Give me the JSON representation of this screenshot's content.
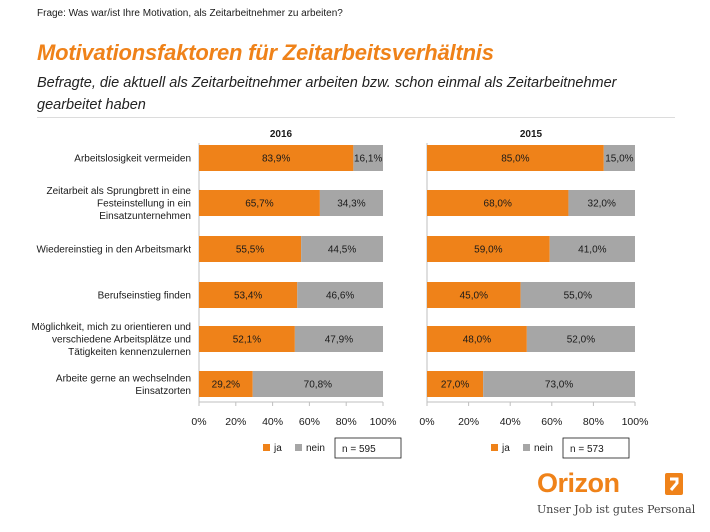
{
  "header": {
    "question": "Frage: Was war/ist Ihre Motivation, als Zeitarbeitnehmer zu arbeiten?",
    "title": "Motivationsfaktoren für Zeitarbeitsverhältnis",
    "subtitle": "Befragte, die aktuell als Zeitarbeitnehmer arbeiten bzw. schon einmal als Zeitarbeitnehmer gearbeitet haben"
  },
  "colors": {
    "ja": "#ef8219",
    "nein": "#a6a6a6",
    "accent": "#ef8219"
  },
  "chart_data": [
    {
      "type": "bar",
      "orientation": "horizontal",
      "stacked": true,
      "title": "2016",
      "categories": [
        [
          "Arbeitslosigkeit vermeiden"
        ],
        [
          "Zeitarbeit als Sprungbrett in eine",
          "Festeinstellung in ein",
          "Einsatzunternehmen"
        ],
        [
          "Wiedereinstieg in den Arbeitsmarkt"
        ],
        [
          "Berufseinstieg finden"
        ],
        [
          "Möglichkeit, mich zu orientieren und",
          "verschiedene Arbeitsplätze und",
          "Tätigkeiten kennenzulernen"
        ],
        [
          "Arbeite gerne an wechselnden",
          "Einsatzorten"
        ]
      ],
      "series": [
        {
          "name": "ja",
          "values": [
            83.9,
            65.7,
            55.5,
            53.4,
            52.1,
            29.2
          ],
          "labels": [
            "83,9%",
            "65,7%",
            "55,5%",
            "53,4%",
            "52,1%",
            "29,2%"
          ]
        },
        {
          "name": "nein",
          "values": [
            16.1,
            34.3,
            44.5,
            46.6,
            47.9,
            70.8
          ],
          "labels": [
            "16,1%",
            "34,3%",
            "44,5%",
            "46,6%",
            "47,9%",
            "70,8%"
          ]
        }
      ],
      "xlim": [
        0,
        100
      ],
      "xticks": [
        "0%",
        "20%",
        "40%",
        "60%",
        "80%",
        "100%"
      ],
      "legend": {
        "placement": "bottom",
        "note": "n = 595"
      }
    },
    {
      "type": "bar",
      "orientation": "horizontal",
      "stacked": true,
      "title": "2015",
      "series": [
        {
          "name": "ja",
          "values": [
            85.0,
            68.0,
            59.0,
            45.0,
            48.0,
            27.0
          ],
          "labels": [
            "85,0%",
            "68,0%",
            "59,0%",
            "45,0%",
            "48,0%",
            "27,0%"
          ]
        },
        {
          "name": "nein",
          "values": [
            15.0,
            32.0,
            41.0,
            55.0,
            52.0,
            73.0
          ],
          "labels": [
            "15,0%",
            "32,0%",
            "41,0%",
            "55,0%",
            "52,0%",
            "73,0%"
          ]
        }
      ],
      "xlim": [
        0,
        100
      ],
      "xticks": [
        "0%",
        "20%",
        "40%",
        "60%",
        "80%",
        "100%"
      ],
      "legend": {
        "placement": "bottom",
        "note": "n = 573"
      }
    }
  ],
  "logo": {
    "word": "Orizon",
    "tagline": "Unser Job ist gutes Personal"
  }
}
